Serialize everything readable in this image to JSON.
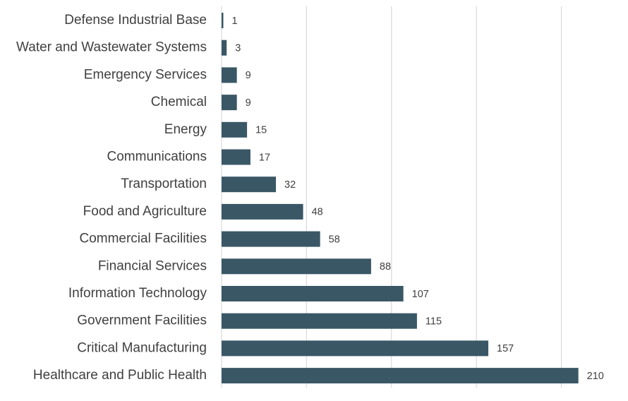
{
  "chart_data": {
    "type": "bar",
    "orientation": "horizontal",
    "title": "",
    "xlabel": "",
    "ylabel": "",
    "categories": [
      "Defense Industrial Base",
      "Water and Wastewater Systems",
      "Emergency Services",
      "Chemical",
      "Energy",
      "Communications",
      "Transportation",
      "Food and Agriculture",
      "Commercial Facilities",
      "Financial Services",
      "Information Technology",
      "Government Facilities",
      "Critical Manufacturing",
      "Healthcare and Public Health"
    ],
    "values": [
      1,
      3,
      9,
      9,
      15,
      17,
      32,
      48,
      58,
      88,
      107,
      115,
      157,
      210
    ],
    "xlim": [
      0,
      225
    ],
    "grid_interval": 50,
    "gridlines": true,
    "legend": "none",
    "bar_color": "#3a5766",
    "text_color": "#404040",
    "grid_color": "#d9d9d9"
  }
}
